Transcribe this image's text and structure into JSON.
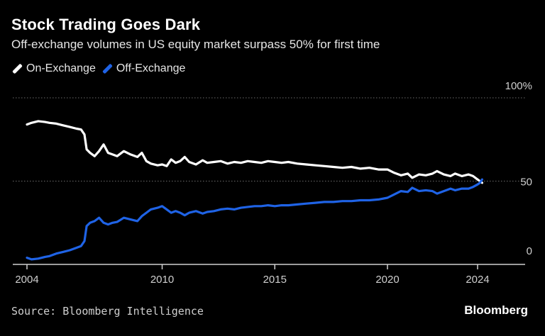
{
  "header": {
    "title": "Stock Trading Goes Dark",
    "subtitle": "Off-exchange volumes in US equity market surpass 50% for first time"
  },
  "footer": {
    "source": "Source: Bloomberg Intelligence",
    "brand": "Bloomberg"
  },
  "colors": {
    "background": "#000000",
    "on_exchange": "#ffffff",
    "off_exchange": "#1f63e6",
    "gridline": "#6b6b6b",
    "axis_text": "#cfcfcf"
  },
  "chart_data": {
    "type": "line",
    "title": "Stock Trading Goes Dark",
    "subtitle": "Off-exchange volumes in US equity market surpass 50% for first time",
    "xlabel": "",
    "ylabel": "",
    "xlim": [
      2004,
      2025
    ],
    "ylim": [
      0,
      100
    ],
    "x_ticks": [
      {
        "value": 2004,
        "label": "2004"
      },
      {
        "value": 2010,
        "label": "2010"
      },
      {
        "value": 2015,
        "label": "2015"
      },
      {
        "value": 2020,
        "label": "2020"
      },
      {
        "value": 2024,
        "label": "2024"
      }
    ],
    "y_ticks": [
      {
        "value": 100,
        "label": "100%"
      },
      {
        "value": 50,
        "label": "50"
      },
      {
        "value": 0,
        "label": "0"
      }
    ],
    "gridlines": [
      100,
      50
    ],
    "legend_position": "top-left",
    "series": [
      {
        "name": "On-Exchange",
        "color": "#ffffff",
        "points": [
          [
            2004.0,
            84
          ],
          [
            2004.2,
            85
          ],
          [
            2004.5,
            86
          ],
          [
            2004.8,
            85.5
          ],
          [
            2005.0,
            85
          ],
          [
            2005.3,
            84.5
          ],
          [
            2005.6,
            83.5
          ],
          [
            2005.9,
            82.5
          ],
          [
            2006.2,
            81.5
          ],
          [
            2006.4,
            81
          ],
          [
            2006.55,
            78
          ],
          [
            2006.65,
            69
          ],
          [
            2006.8,
            67
          ],
          [
            2007.0,
            65
          ],
          [
            2007.2,
            68
          ],
          [
            2007.4,
            72
          ],
          [
            2007.6,
            67
          ],
          [
            2007.8,
            66
          ],
          [
            2008.0,
            65
          ],
          [
            2008.3,
            68
          ],
          [
            2008.6,
            66
          ],
          [
            2008.9,
            64.5
          ],
          [
            2009.1,
            67
          ],
          [
            2009.3,
            62
          ],
          [
            2009.5,
            60.5
          ],
          [
            2009.8,
            59.5
          ],
          [
            2010.0,
            60
          ],
          [
            2010.2,
            59
          ],
          [
            2010.4,
            63
          ],
          [
            2010.6,
            61
          ],
          [
            2010.8,
            62
          ],
          [
            2011.0,
            64.5
          ],
          [
            2011.2,
            61.5
          ],
          [
            2011.5,
            60
          ],
          [
            2011.8,
            62.5
          ],
          [
            2012.0,
            61
          ],
          [
            2012.3,
            61.5
          ],
          [
            2012.6,
            62
          ],
          [
            2012.9,
            60.5
          ],
          [
            2013.2,
            61.5
          ],
          [
            2013.5,
            61
          ],
          [
            2013.8,
            62
          ],
          [
            2014.1,
            61.5
          ],
          [
            2014.4,
            61
          ],
          [
            2014.7,
            62
          ],
          [
            2015.0,
            61.5
          ],
          [
            2015.3,
            61
          ],
          [
            2015.6,
            61.5
          ],
          [
            2016.0,
            60.5
          ],
          [
            2016.4,
            60
          ],
          [
            2016.8,
            59.5
          ],
          [
            2017.2,
            59
          ],
          [
            2017.6,
            58.5
          ],
          [
            2018.0,
            58
          ],
          [
            2018.4,
            58.5
          ],
          [
            2018.8,
            57.5
          ],
          [
            2019.2,
            58
          ],
          [
            2019.6,
            57
          ],
          [
            2020.0,
            57
          ],
          [
            2020.3,
            55
          ],
          [
            2020.6,
            53.5
          ],
          [
            2020.9,
            54.5
          ],
          [
            2021.1,
            52
          ],
          [
            2021.4,
            54
          ],
          [
            2021.7,
            53.5
          ],
          [
            2022.0,
            54.5
          ],
          [
            2022.2,
            56
          ],
          [
            2022.5,
            54
          ],
          [
            2022.8,
            53
          ],
          [
            2023.0,
            54.5
          ],
          [
            2023.3,
            53
          ],
          [
            2023.6,
            54
          ],
          [
            2023.8,
            53
          ],
          [
            2024.0,
            51
          ],
          [
            2024.1,
            50
          ],
          [
            2024.2,
            49
          ]
        ]
      },
      {
        "name": "Off-Exchange",
        "color": "#1f63e6",
        "points": [
          [
            2004.0,
            4
          ],
          [
            2004.2,
            3
          ],
          [
            2004.5,
            3.5
          ],
          [
            2004.8,
            4.5
          ],
          [
            2005.0,
            5
          ],
          [
            2005.3,
            6.5
          ],
          [
            2005.6,
            7.5
          ],
          [
            2005.9,
            8.5
          ],
          [
            2006.2,
            10
          ],
          [
            2006.4,
            11
          ],
          [
            2006.55,
            14
          ],
          [
            2006.65,
            23
          ],
          [
            2006.8,
            25
          ],
          [
            2007.0,
            26
          ],
          [
            2007.2,
            28
          ],
          [
            2007.4,
            25
          ],
          [
            2007.6,
            24
          ],
          [
            2007.8,
            25
          ],
          [
            2008.0,
            25.5
          ],
          [
            2008.3,
            28
          ],
          [
            2008.6,
            27
          ],
          [
            2008.9,
            26
          ],
          [
            2009.1,
            29
          ],
          [
            2009.3,
            31
          ],
          [
            2009.5,
            33
          ],
          [
            2009.8,
            34
          ],
          [
            2010.0,
            35
          ],
          [
            2010.2,
            33
          ],
          [
            2010.4,
            31
          ],
          [
            2010.6,
            32
          ],
          [
            2010.8,
            31
          ],
          [
            2011.0,
            29.5
          ],
          [
            2011.2,
            31
          ],
          [
            2011.5,
            32
          ],
          [
            2011.8,
            30.5
          ],
          [
            2012.0,
            31.5
          ],
          [
            2012.3,
            32
          ],
          [
            2012.6,
            33
          ],
          [
            2012.9,
            33.5
          ],
          [
            2013.2,
            33
          ],
          [
            2013.5,
            34
          ],
          [
            2013.8,
            34.5
          ],
          [
            2014.1,
            35
          ],
          [
            2014.4,
            35
          ],
          [
            2014.7,
            35.5
          ],
          [
            2015.0,
            35
          ],
          [
            2015.3,
            35.5
          ],
          [
            2015.6,
            35.5
          ],
          [
            2016.0,
            36
          ],
          [
            2016.4,
            36.5
          ],
          [
            2016.8,
            37
          ],
          [
            2017.2,
            37.5
          ],
          [
            2017.6,
            37.5
          ],
          [
            2018.0,
            38
          ],
          [
            2018.4,
            38
          ],
          [
            2018.8,
            38.5
          ],
          [
            2019.2,
            38.5
          ],
          [
            2019.6,
            39
          ],
          [
            2020.0,
            40
          ],
          [
            2020.3,
            42
          ],
          [
            2020.6,
            44
          ],
          [
            2020.9,
            43.5
          ],
          [
            2021.1,
            46
          ],
          [
            2021.4,
            44
          ],
          [
            2021.7,
            44.5
          ],
          [
            2022.0,
            44
          ],
          [
            2022.2,
            42.5
          ],
          [
            2022.5,
            44
          ],
          [
            2022.8,
            45.5
          ],
          [
            2023.0,
            44.5
          ],
          [
            2023.3,
            45.5
          ],
          [
            2023.6,
            45.5
          ],
          [
            2023.8,
            46.5
          ],
          [
            2024.0,
            48
          ],
          [
            2024.1,
            49
          ],
          [
            2024.2,
            51
          ]
        ]
      }
    ]
  }
}
